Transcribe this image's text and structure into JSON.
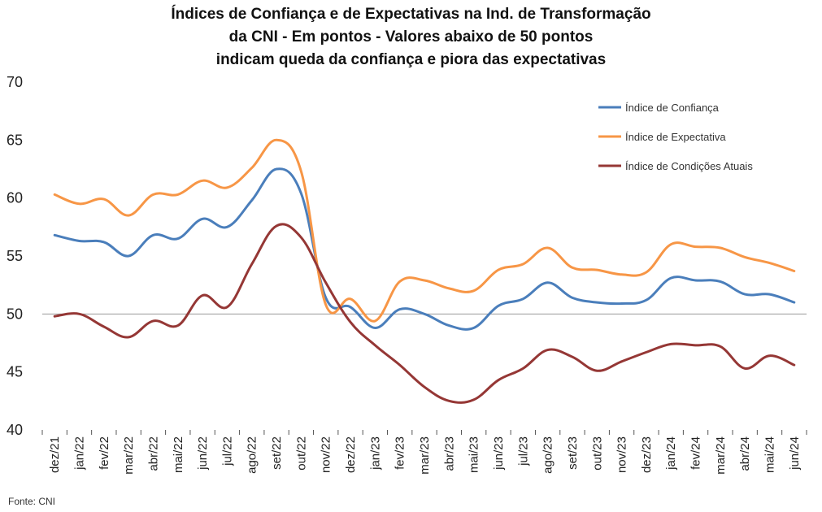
{
  "chart_data": {
    "type": "line",
    "title_lines": [
      "Índices de Confiança e de Expectativas na Ind. de Transformação",
      "da CNI - Em pontos - Valores abaixo de 50 pontos",
      "indicam queda da confiança e piora das expectativas"
    ],
    "categories": [
      "dez/21",
      "jan/22",
      "fev/22",
      "mar/22",
      "abr/22",
      "mai/22",
      "jun/22",
      "jul/22",
      "ago/22",
      "set/22",
      "out/22",
      "nov/22",
      "dez/22",
      "jan/23",
      "fev/23",
      "mar/23",
      "abr/23",
      "mai/23",
      "jun/23",
      "jul/23",
      "ago/23",
      "set/23",
      "out/23",
      "nov/23",
      "dez/23",
      "jan/24",
      "fev/24",
      "mar/24",
      "abr/24",
      "mai/24",
      "jun/24"
    ],
    "y_ticks": [
      "40",
      "45",
      "50",
      "55",
      "60",
      "65",
      "70"
    ],
    "ylim": [
      40,
      70
    ],
    "reference_line": 50,
    "legend_position": "top-right",
    "series": [
      {
        "name": "Índice de Confiança",
        "color": "#4a7ebb",
        "values": [
          56.8,
          56.3,
          56.2,
          55.0,
          56.8,
          56.5,
          58.2,
          57.5,
          59.8,
          62.5,
          60.4,
          51.4,
          50.6,
          48.8,
          50.4,
          50.0,
          49.0,
          48.8,
          50.7,
          51.3,
          52.7,
          51.4,
          51.0,
          50.9,
          51.2,
          53.1,
          52.9,
          52.8,
          51.7,
          51.7,
          51.0
        ]
      },
      {
        "name": "Índice de Expectativa",
        "color": "#f79646",
        "values": [
          60.3,
          59.5,
          59.9,
          58.5,
          60.3,
          60.3,
          61.5,
          60.9,
          62.6,
          65.0,
          62.3,
          50.8,
          51.3,
          49.4,
          52.8,
          52.9,
          52.2,
          52.0,
          53.8,
          54.3,
          55.7,
          54.0,
          53.8,
          53.4,
          53.6,
          56.0,
          55.8,
          55.7,
          54.9,
          54.4,
          53.7
        ]
      },
      {
        "name": "Índice de Condições Atuais",
        "color": "#953735",
        "values": [
          49.8,
          50.0,
          48.9,
          48.0,
          49.4,
          49.0,
          51.6,
          50.6,
          54.3,
          57.6,
          56.6,
          52.7,
          49.3,
          47.3,
          45.6,
          43.7,
          42.5,
          42.6,
          44.3,
          45.3,
          46.9,
          46.3,
          45.1,
          45.9,
          46.7,
          47.4,
          47.3,
          47.2,
          45.3,
          46.4,
          45.6
        ]
      }
    ]
  },
  "source": "Fonte: CNI"
}
